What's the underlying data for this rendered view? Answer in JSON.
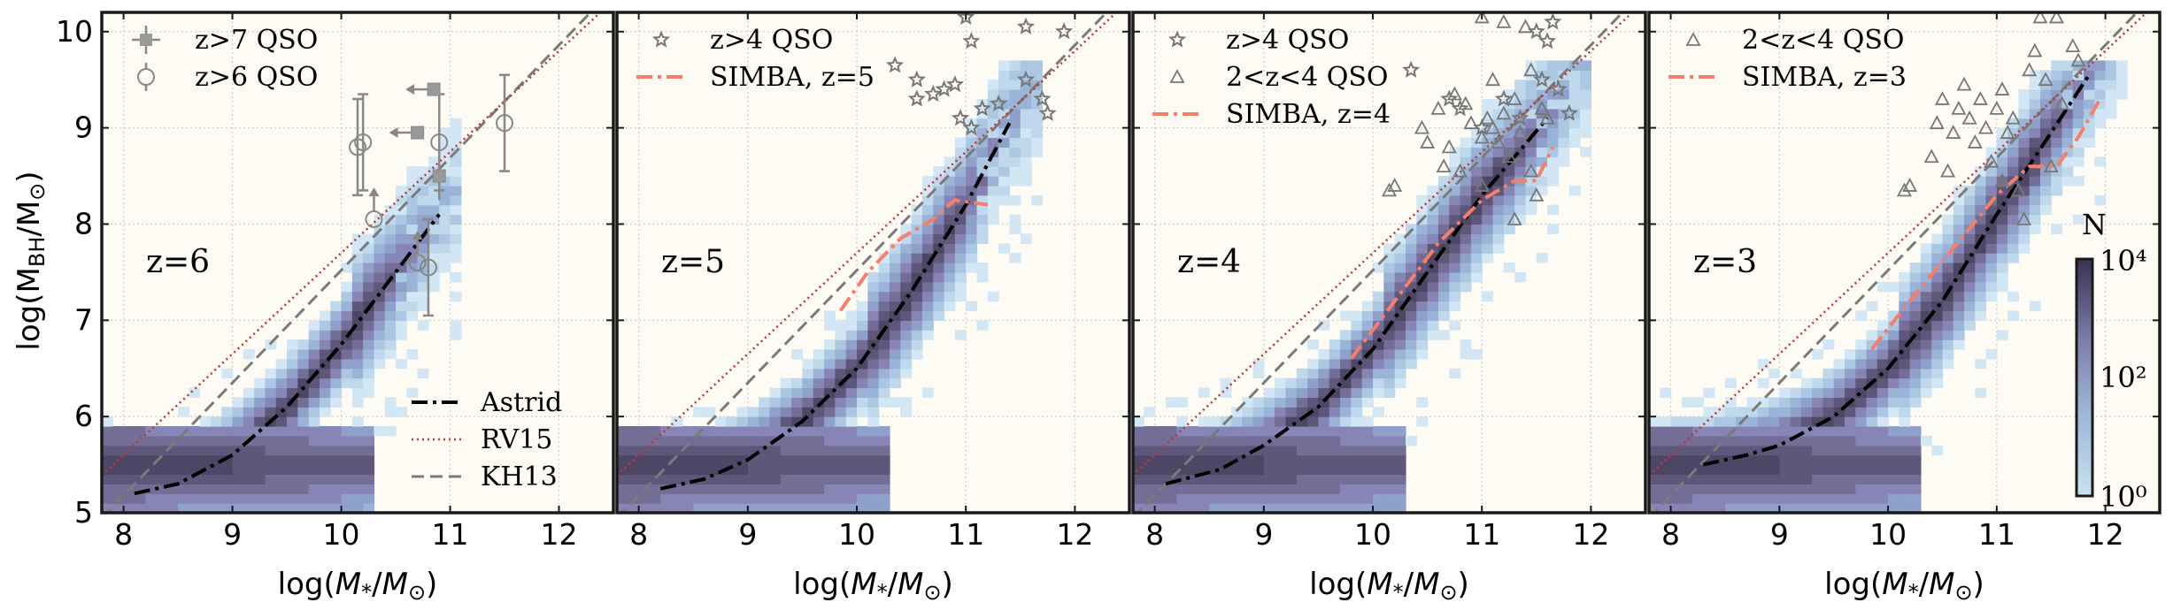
{
  "figure": {
    "ylabel": "log(M_BH/M⊙)",
    "xlabel": "log(M*/M⊙)",
    "x_ticks": [
      "8",
      "9",
      "10",
      "11",
      "12"
    ],
    "y_ticks": [
      "5",
      "6",
      "7",
      "8",
      "9",
      "10"
    ]
  },
  "colorbar": {
    "label": "N",
    "ticks": [
      "10⁰",
      "10²",
      "10⁴"
    ],
    "range_log10": [
      0,
      4
    ]
  },
  "chart_data": [
    {
      "type": "heatmap",
      "panel_label": "z=6",
      "xlim": [
        7.8,
        12.5
      ],
      "ylim": [
        5,
        10.2
      ],
      "grid": true,
      "legend_top": [
        {
          "key": "qso_z7",
          "label": "z>7 QSO",
          "marker": "square-errorbar"
        },
        {
          "key": "qso_z6",
          "label": "z>6 QSO",
          "marker": "circle-errorbar"
        }
      ],
      "legend_bottom": [
        {
          "key": "astrid",
          "label": "Astrid",
          "style": "dashdot"
        },
        {
          "key": "rv15",
          "label": "RV15",
          "style": "dotted"
        },
        {
          "key": "kh13",
          "label": "KH13",
          "style": "dashed"
        }
      ],
      "astrid_median": {
        "x": [
          8.1,
          8.5,
          9.0,
          9.5,
          10.0,
          10.5,
          10.9
        ],
        "y": [
          5.2,
          5.3,
          5.6,
          6.1,
          6.75,
          7.5,
          8.1
        ]
      },
      "simba": null,
      "observations": {
        "z6_circles": [
          {
            "x": 10.15,
            "y": 8.8,
            "err": 0.5
          },
          {
            "x": 10.2,
            "y": 8.85,
            "err": 0.5
          },
          {
            "x": 10.9,
            "y": 8.85,
            "err": 0.5
          },
          {
            "x": 11.5,
            "y": 9.05,
            "err": 0.5
          },
          {
            "x": 10.8,
            "y": 7.55,
            "err": 0.5
          },
          {
            "x": 10.3,
            "y": 8.05,
            "limit": "upper-bh"
          },
          {
            "x": 10.7,
            "y": 7.6,
            "limit": "upper-bh"
          }
        ],
        "z7_squares": [
          {
            "x": 10.85,
            "y": 9.4,
            "limit": "upper-mstar"
          },
          {
            "x": 10.7,
            "y": 8.95,
            "limit": "upper-mstar"
          },
          {
            "x": 10.9,
            "y": 8.5,
            "err": 0.25
          }
        ]
      }
    },
    {
      "type": "heatmap",
      "panel_label": "z=5",
      "xlim": [
        7.8,
        12.5
      ],
      "ylim": [
        5,
        10.2
      ],
      "grid": true,
      "legend_top": [
        {
          "key": "qso_z4",
          "label": "z>4 QSO",
          "marker": "star"
        },
        {
          "key": "simba",
          "label": "SIMBA, z=5",
          "style": "dashdot-salmon"
        }
      ],
      "astrid_median": {
        "x": [
          8.2,
          8.6,
          9.0,
          9.5,
          10.0,
          10.5,
          11.0,
          11.4
        ],
        "y": [
          5.25,
          5.35,
          5.55,
          5.95,
          6.5,
          7.3,
          8.2,
          9.05
        ]
      },
      "simba": {
        "x": [
          9.85,
          10.1,
          10.4,
          10.7,
          10.9,
          11.2
        ],
        "y": [
          7.1,
          7.5,
          7.85,
          8.05,
          8.25,
          8.2
        ]
      },
      "observations": {
        "stars": [
          {
            "x": 10.35,
            "y": 9.65
          },
          {
            "x": 10.55,
            "y": 9.5
          },
          {
            "x": 10.55,
            "y": 9.3
          },
          {
            "x": 10.7,
            "y": 9.35
          },
          {
            "x": 10.8,
            "y": 9.4
          },
          {
            "x": 10.9,
            "y": 9.45
          },
          {
            "x": 10.95,
            "y": 9.1
          },
          {
            "x": 11.05,
            "y": 9.0
          },
          {
            "x": 11.15,
            "y": 9.2
          },
          {
            "x": 11.3,
            "y": 9.25
          },
          {
            "x": 11.55,
            "y": 9.5
          },
          {
            "x": 11.7,
            "y": 9.3
          },
          {
            "x": 11.75,
            "y": 9.15
          },
          {
            "x": 11.9,
            "y": 10.0
          },
          {
            "x": 11.55,
            "y": 10.05
          },
          {
            "x": 11.0,
            "y": 10.15
          },
          {
            "x": 11.05,
            "y": 9.9
          }
        ]
      }
    },
    {
      "type": "heatmap",
      "panel_label": "z=4",
      "xlim": [
        7.8,
        12.5
      ],
      "ylim": [
        5,
        10.2
      ],
      "grid": true,
      "legend_top": [
        {
          "key": "qso_z4",
          "label": "z>4 QSO",
          "marker": "star"
        },
        {
          "key": "qso_z2_4",
          "label": "2<z<4 QSO",
          "marker": "triangle"
        },
        {
          "key": "simba",
          "label": "SIMBA, z=4",
          "style": "dashdot-salmon"
        }
      ],
      "astrid_median": {
        "x": [
          8.1,
          8.6,
          9.0,
          9.5,
          10.0,
          10.5,
          11.0,
          11.6
        ],
        "y": [
          5.3,
          5.45,
          5.7,
          6.1,
          6.7,
          7.5,
          8.3,
          9.1
        ]
      },
      "simba": {
        "x": [
          9.8,
          10.2,
          10.6,
          11.0,
          11.3,
          11.5,
          11.65
        ],
        "y": [
          6.6,
          7.2,
          7.8,
          8.25,
          8.45,
          8.45,
          8.8
        ]
      },
      "observations": {
        "stars": [
          {
            "x": 10.35,
            "y": 9.6
          },
          {
            "x": 10.7,
            "y": 9.3
          },
          {
            "x": 10.8,
            "y": 9.2
          },
          {
            "x": 11.0,
            "y": 9.0
          },
          {
            "x": 11.2,
            "y": 9.3
          },
          {
            "x": 11.35,
            "y": 9.1
          },
          {
            "x": 11.55,
            "y": 9.5
          },
          {
            "x": 11.7,
            "y": 9.4
          },
          {
            "x": 11.8,
            "y": 9.15
          },
          {
            "x": 11.6,
            "y": 9.9
          },
          {
            "x": 11.5,
            "y": 10.0
          },
          {
            "x": 11.65,
            "y": 10.1
          }
        ],
        "triangles": [
          {
            "x": 10.15,
            "y": 8.35
          },
          {
            "x": 10.2,
            "y": 8.4
          },
          {
            "x": 10.45,
            "y": 9.0
          },
          {
            "x": 10.5,
            "y": 8.85
          },
          {
            "x": 10.6,
            "y": 9.2
          },
          {
            "x": 10.7,
            "y": 8.8
          },
          {
            "x": 10.75,
            "y": 9.35
          },
          {
            "x": 10.85,
            "y": 9.25
          },
          {
            "x": 10.9,
            "y": 9.05
          },
          {
            "x": 11.0,
            "y": 8.9
          },
          {
            "x": 11.05,
            "y": 9.1
          },
          {
            "x": 11.1,
            "y": 9.0
          },
          {
            "x": 11.15,
            "y": 8.85
          },
          {
            "x": 11.2,
            "y": 9.15
          },
          {
            "x": 11.25,
            "y": 8.7
          },
          {
            "x": 11.3,
            "y": 9.3
          },
          {
            "x": 11.35,
            "y": 8.95
          },
          {
            "x": 11.45,
            "y": 8.55
          },
          {
            "x": 11.5,
            "y": 8.3
          },
          {
            "x": 11.2,
            "y": 10.1
          },
          {
            "x": 11.0,
            "y": 10.15
          },
          {
            "x": 11.4,
            "y": 10.05
          },
          {
            "x": 11.1,
            "y": 9.5
          },
          {
            "x": 11.45,
            "y": 9.6
          },
          {
            "x": 11.55,
            "y": 9.2
          },
          {
            "x": 11.6,
            "y": 9.1
          },
          {
            "x": 10.8,
            "y": 8.55
          },
          {
            "x": 11.3,
            "y": 8.05
          },
          {
            "x": 10.65,
            "y": 8.6
          },
          {
            "x": 11.0,
            "y": 8.4
          }
        ]
      }
    },
    {
      "type": "heatmap",
      "panel_label": "z=3",
      "xlim": [
        7.8,
        12.5
      ],
      "ylim": [
        5,
        10.2
      ],
      "grid": true,
      "legend_top": [
        {
          "key": "qso_z2_4",
          "label": "2<z<4 QSO",
          "marker": "triangle"
        },
        {
          "key": "simba",
          "label": "SIMBA, z=3",
          "style": "dashdot-salmon"
        }
      ],
      "astrid_median": {
        "x": [
          8.3,
          8.7,
          9.0,
          9.5,
          10.0,
          10.5,
          11.0,
          11.5,
          11.85
        ],
        "y": [
          5.5,
          5.6,
          5.7,
          6.0,
          6.5,
          7.2,
          8.1,
          8.95,
          9.55
        ]
      },
      "simba": {
        "x": [
          9.85,
          10.2,
          10.6,
          11.0,
          11.3,
          11.55,
          11.75,
          11.95
        ],
        "y": [
          6.7,
          7.2,
          7.75,
          8.3,
          8.6,
          8.6,
          8.9,
          9.3
        ]
      },
      "observations": {
        "triangles": [
          {
            "x": 10.15,
            "y": 8.35
          },
          {
            "x": 10.2,
            "y": 8.4
          },
          {
            "x": 10.4,
            "y": 8.7
          },
          {
            "x": 10.45,
            "y": 9.05
          },
          {
            "x": 10.5,
            "y": 9.3
          },
          {
            "x": 10.6,
            "y": 8.95
          },
          {
            "x": 10.65,
            "y": 9.2
          },
          {
            "x": 10.7,
            "y": 9.45
          },
          {
            "x": 10.75,
            "y": 9.1
          },
          {
            "x": 10.8,
            "y": 8.85
          },
          {
            "x": 10.85,
            "y": 9.3
          },
          {
            "x": 10.9,
            "y": 9.0
          },
          {
            "x": 10.95,
            "y": 8.65
          },
          {
            "x": 11.0,
            "y": 9.2
          },
          {
            "x": 11.05,
            "y": 8.45
          },
          {
            "x": 11.1,
            "y": 8.95
          },
          {
            "x": 11.15,
            "y": 9.1
          },
          {
            "x": 11.2,
            "y": 8.35
          },
          {
            "x": 11.25,
            "y": 8.05
          },
          {
            "x": 11.3,
            "y": 9.6
          },
          {
            "x": 11.35,
            "y": 9.8
          },
          {
            "x": 11.4,
            "y": 10.15
          },
          {
            "x": 11.55,
            "y": 10.15
          },
          {
            "x": 11.45,
            "y": 9.5
          },
          {
            "x": 11.6,
            "y": 9.25
          },
          {
            "x": 11.7,
            "y": 9.85
          },
          {
            "x": 11.75,
            "y": 9.7
          },
          {
            "x": 11.5,
            "y": 8.6
          },
          {
            "x": 11.05,
            "y": 9.4
          },
          {
            "x": 10.55,
            "y": 8.55
          }
        ]
      }
    }
  ]
}
